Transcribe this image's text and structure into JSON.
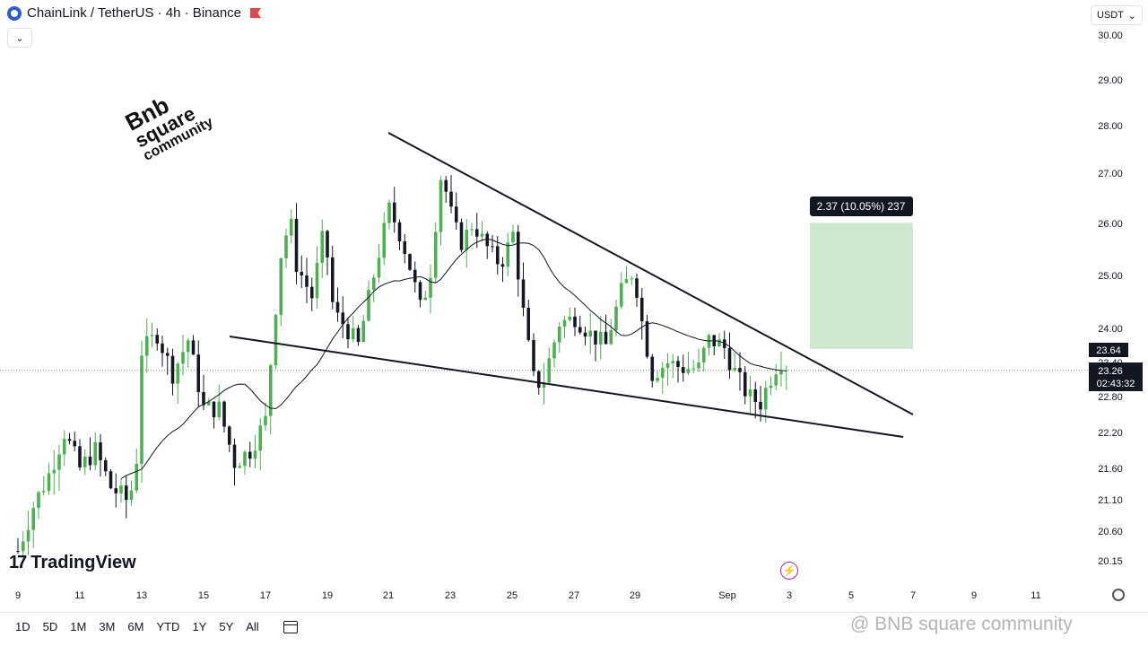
{
  "header": {
    "symbol": "ChainLink / TetherUS · 4h · Binance"
  },
  "currency_selector": {
    "label": "USDT",
    "chevron": "chevron-down-icon"
  },
  "toolbar": {
    "ranges": [
      "1D",
      "5D",
      "1M",
      "3M",
      "6M",
      "YTD",
      "1Y",
      "5Y",
      "All"
    ],
    "calendar_icon": "calendar-icon"
  },
  "branding": {
    "tradingview": "TradingView",
    "watermark_lines": [
      "Bnb",
      "square",
      "community"
    ],
    "footer_watermark": "@ BNB square community"
  },
  "measure_label": "2.37 (10.05%) 237",
  "price_badges": {
    "target": "23.64",
    "current": "23.26",
    "countdown": "02:43:32"
  },
  "chart_data": {
    "type": "candlestick",
    "symbol": "LINK/USDT",
    "interval": "4h",
    "y_axis_ticks": [
      30.0,
      29.0,
      28.0,
      27.0,
      26.0,
      25.0,
      24.0,
      23.4,
      22.8,
      22.2,
      21.6,
      21.1,
      20.6,
      20.15
    ],
    "y_tick_labels": [
      "30.00",
      "29.00",
      "28.00",
      "27.00",
      "26.00",
      "25.00",
      "24.00",
      "23.40",
      "22.80",
      "22.20",
      "21.60",
      "21.10",
      "20.60",
      "20.15"
    ],
    "x_axis_labels": [
      "9",
      "11",
      "13",
      "15",
      "17",
      "19",
      "21",
      "23",
      "25",
      "27",
      "29",
      "Sep",
      "3",
      "5",
      "7",
      "9",
      "11"
    ],
    "current_price": 23.26,
    "colors": {
      "up": "#4caf50",
      "down": "#131722",
      "ma": "#131722",
      "box": "#c8e6c9"
    },
    "trendlines": [
      {
        "name": "upper-resistance",
        "from": [
          "Aug 22",
          27.85
        ],
        "to": [
          "Sep 7",
          22.85
        ]
      },
      {
        "name": "lower-support",
        "from": [
          "Aug 16",
          23.8
        ],
        "to": [
          "Sep 6",
          22.15
        ]
      }
    ],
    "target_box": {
      "from_price": 23.64,
      "to_price": 26.01,
      "change": "2.37 (10.05%) 237"
    }
  }
}
